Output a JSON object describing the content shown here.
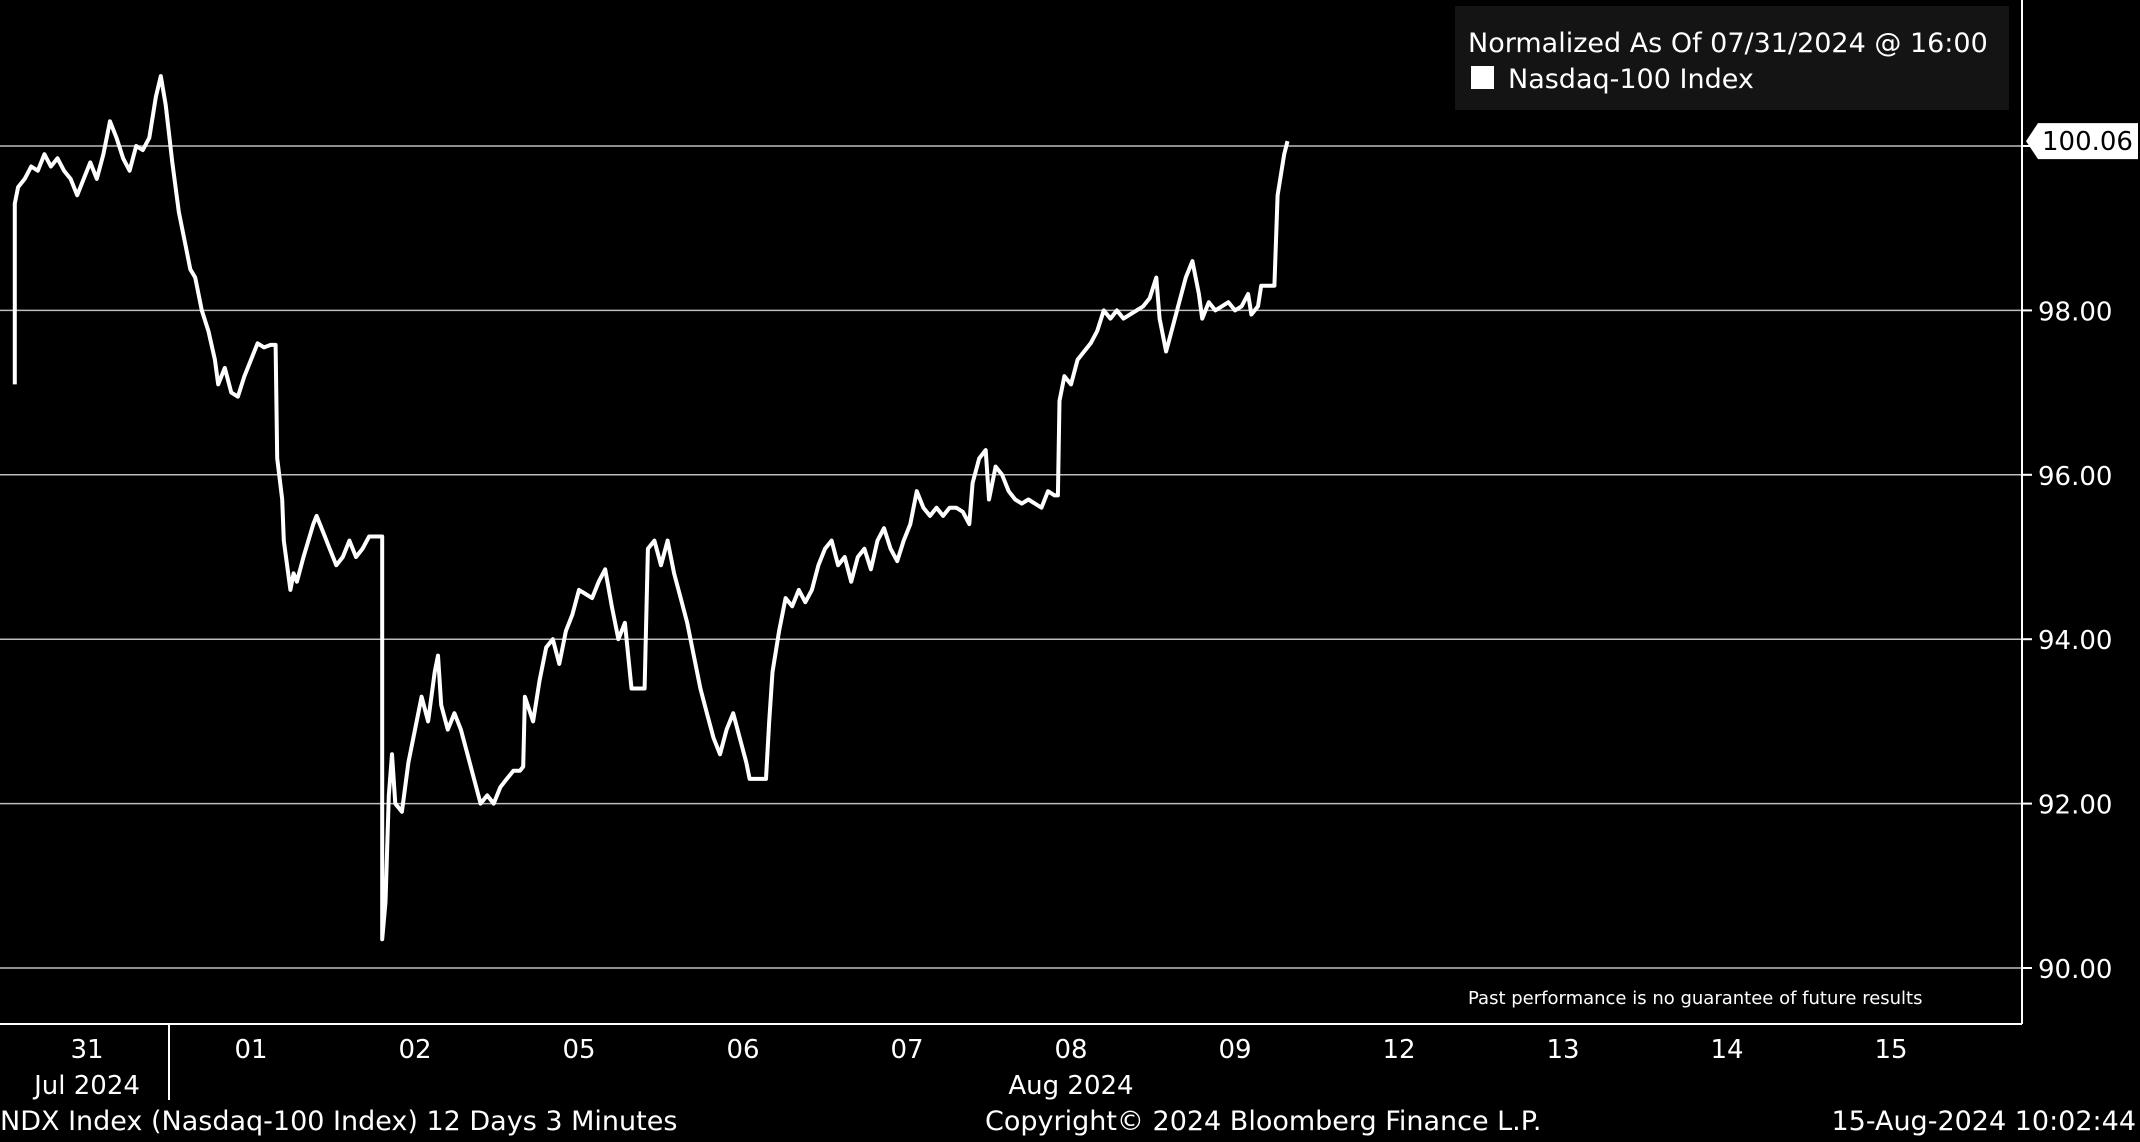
{
  "chart_data": {
    "type": "line",
    "legend": {
      "header": "Normalized As Of 07/31/2024 @ 16:00",
      "placement": "top-right",
      "items": [
        {
          "name": "Nasdaq-100 Index",
          "color": "#ffffff"
        }
      ]
    },
    "last_value_label": "100.06",
    "disclaimer": "Past performance is no guarantee of future results",
    "y_axis": {
      "side": "right",
      "range": [
        89.3,
        101.8
      ],
      "ticks": [
        90,
        92,
        94,
        96,
        98,
        100
      ],
      "tick_labels": [
        "90.00",
        "92.00",
        "94.00",
        "96.00",
        "98.00",
        "100.00"
      ],
      "grid": true
    },
    "x_axis": {
      "range": [
        0,
        11.8
      ],
      "ticks": [
        {
          "pos": 0,
          "label": "31"
        },
        {
          "pos": 1,
          "label": "01"
        },
        {
          "pos": 2,
          "label": "02"
        },
        {
          "pos": 3,
          "label": "05"
        },
        {
          "pos": 4,
          "label": "06"
        },
        {
          "pos": 5,
          "label": "07"
        },
        {
          "pos": 6,
          "label": "08"
        },
        {
          "pos": 7,
          "label": "09"
        },
        {
          "pos": 8,
          "label": "12"
        },
        {
          "pos": 9,
          "label": "13"
        },
        {
          "pos": 10,
          "label": "14"
        },
        {
          "pos": 11,
          "label": "15"
        }
      ],
      "month_labels": [
        {
          "pos": 0,
          "label": "Jul 2024"
        },
        {
          "pos": 6,
          "label": "Aug 2024"
        }
      ],
      "month_separator_pos": 0.5
    },
    "series": [
      {
        "name": "Nasdaq-100 Index",
        "color": "#ffffff",
        "points": [
          [
            -0.44,
            97.1
          ],
          [
            -0.44,
            99.3
          ],
          [
            -0.42,
            99.5
          ],
          [
            -0.38,
            99.6
          ],
          [
            -0.34,
            99.75
          ],
          [
            -0.3,
            99.7
          ],
          [
            -0.26,
            99.9
          ],
          [
            -0.22,
            99.75
          ],
          [
            -0.18,
            99.85
          ],
          [
            -0.14,
            99.7
          ],
          [
            -0.1,
            99.6
          ],
          [
            -0.06,
            99.4
          ],
          [
            -0.02,
            99.6
          ],
          [
            0.02,
            99.8
          ],
          [
            0.06,
            99.6
          ],
          [
            0.1,
            99.9
          ],
          [
            0.14,
            100.3
          ],
          [
            0.18,
            100.1
          ],
          [
            0.22,
            99.85
          ],
          [
            0.26,
            99.7
          ],
          [
            0.3,
            100.0
          ],
          [
            0.34,
            99.95
          ],
          [
            0.38,
            100.1
          ],
          [
            0.42,
            100.6
          ],
          [
            0.45,
            100.85
          ],
          [
            0.48,
            100.5
          ],
          [
            0.52,
            99.8
          ],
          [
            0.56,
            99.2
          ],
          [
            0.6,
            98.8
          ],
          [
            0.63,
            98.5
          ],
          [
            0.66,
            98.4
          ],
          [
            0.7,
            98.0
          ],
          [
            0.74,
            97.75
          ],
          [
            0.78,
            97.4
          ],
          [
            0.8,
            97.1
          ],
          [
            0.84,
            97.3
          ],
          [
            0.88,
            97.0
          ],
          [
            0.92,
            96.95
          ],
          [
            0.96,
            97.2
          ],
          [
            1.0,
            97.4
          ],
          [
            1.04,
            97.6
          ],
          [
            1.08,
            97.55
          ],
          [
            1.12,
            97.58
          ],
          [
            1.15,
            97.58
          ],
          [
            1.16,
            96.2
          ],
          [
            1.19,
            95.7
          ],
          [
            1.2,
            95.2
          ],
          [
            1.24,
            94.6
          ],
          [
            1.26,
            94.8
          ],
          [
            1.28,
            94.7
          ],
          [
            1.32,
            95.0
          ],
          [
            1.35,
            95.2
          ],
          [
            1.38,
            95.4
          ],
          [
            1.4,
            95.5
          ],
          [
            1.44,
            95.3
          ],
          [
            1.48,
            95.1
          ],
          [
            1.52,
            94.9
          ],
          [
            1.56,
            95.0
          ],
          [
            1.6,
            95.2
          ],
          [
            1.64,
            95.0
          ],
          [
            1.68,
            95.1
          ],
          [
            1.72,
            95.25
          ],
          [
            1.76,
            95.25
          ],
          [
            1.8,
            95.25
          ],
          [
            1.8,
            90.35
          ],
          [
            1.82,
            90.8
          ],
          [
            1.84,
            92.1
          ],
          [
            1.86,
            92.6
          ],
          [
            1.88,
            92.0
          ],
          [
            1.92,
            91.9
          ],
          [
            1.96,
            92.5
          ],
          [
            2.0,
            92.9
          ],
          [
            2.04,
            93.3
          ],
          [
            2.08,
            93.0
          ],
          [
            2.12,
            93.6
          ],
          [
            2.14,
            93.8
          ],
          [
            2.16,
            93.2
          ],
          [
            2.2,
            92.9
          ],
          [
            2.24,
            93.1
          ],
          [
            2.28,
            92.9
          ],
          [
            2.32,
            92.6
          ],
          [
            2.36,
            92.3
          ],
          [
            2.4,
            92.0
          ],
          [
            2.44,
            92.1
          ],
          [
            2.48,
            92.0
          ],
          [
            2.52,
            92.2
          ],
          [
            2.56,
            92.3
          ],
          [
            2.6,
            92.4
          ],
          [
            2.64,
            92.4
          ],
          [
            2.66,
            92.45
          ],
          [
            2.67,
            93.3
          ],
          [
            2.72,
            93.0
          ],
          [
            2.76,
            93.5
          ],
          [
            2.8,
            93.9
          ],
          [
            2.84,
            94.0
          ],
          [
            2.88,
            93.7
          ],
          [
            2.92,
            94.1
          ],
          [
            2.96,
            94.3
          ],
          [
            3.0,
            94.6
          ],
          [
            3.04,
            94.55
          ],
          [
            3.08,
            94.5
          ],
          [
            3.12,
            94.7
          ],
          [
            3.16,
            94.85
          ],
          [
            3.2,
            94.4
          ],
          [
            3.24,
            94.0
          ],
          [
            3.28,
            94.2
          ],
          [
            3.32,
            93.4
          ],
          [
            3.36,
            93.4
          ],
          [
            3.4,
            93.4
          ],
          [
            3.42,
            95.1
          ],
          [
            3.46,
            95.2
          ],
          [
            3.5,
            94.9
          ],
          [
            3.54,
            95.2
          ],
          [
            3.58,
            94.8
          ],
          [
            3.62,
            94.5
          ],
          [
            3.66,
            94.2
          ],
          [
            3.7,
            93.8
          ],
          [
            3.74,
            93.4
          ],
          [
            3.78,
            93.1
          ],
          [
            3.82,
            92.8
          ],
          [
            3.86,
            92.6
          ],
          [
            3.9,
            92.9
          ],
          [
            3.94,
            93.1
          ],
          [
            3.98,
            92.8
          ],
          [
            4.02,
            92.5
          ],
          [
            4.04,
            92.3
          ],
          [
            4.1,
            92.3
          ],
          [
            4.14,
            92.3
          ],
          [
            4.16,
            93.0
          ],
          [
            4.18,
            93.6
          ],
          [
            4.22,
            94.1
          ],
          [
            4.26,
            94.5
          ],
          [
            4.3,
            94.4
          ],
          [
            4.34,
            94.6
          ],
          [
            4.38,
            94.45
          ],
          [
            4.42,
            94.6
          ],
          [
            4.46,
            94.9
          ],
          [
            4.5,
            95.1
          ],
          [
            4.54,
            95.2
          ],
          [
            4.58,
            94.9
          ],
          [
            4.62,
            95.0
          ],
          [
            4.66,
            94.7
          ],
          [
            4.7,
            95.0
          ],
          [
            4.74,
            95.1
          ],
          [
            4.78,
            94.85
          ],
          [
            4.82,
            95.2
          ],
          [
            4.86,
            95.35
          ],
          [
            4.9,
            95.1
          ],
          [
            4.94,
            94.95
          ],
          [
            4.98,
            95.2
          ],
          [
            5.02,
            95.4
          ],
          [
            5.06,
            95.8
          ],
          [
            5.1,
            95.6
          ],
          [
            5.14,
            95.5
          ],
          [
            5.18,
            95.6
          ],
          [
            5.22,
            95.5
          ],
          [
            5.26,
            95.6
          ],
          [
            5.3,
            95.6
          ],
          [
            5.34,
            95.55
          ],
          [
            5.38,
            95.4
          ],
          [
            5.4,
            95.9
          ],
          [
            5.44,
            96.2
          ],
          [
            5.48,
            96.3
          ],
          [
            5.5,
            95.7
          ],
          [
            5.54,
            96.1
          ],
          [
            5.58,
            96.0
          ],
          [
            5.62,
            95.8
          ],
          [
            5.66,
            95.7
          ],
          [
            5.7,
            95.65
          ],
          [
            5.74,
            95.7
          ],
          [
            5.78,
            95.65
          ],
          [
            5.82,
            95.6
          ],
          [
            5.86,
            95.8
          ],
          [
            5.9,
            95.75
          ],
          [
            5.92,
            95.75
          ],
          [
            5.93,
            96.9
          ],
          [
            5.96,
            97.2
          ],
          [
            6.0,
            97.1
          ],
          [
            6.04,
            97.4
          ],
          [
            6.08,
            97.5
          ],
          [
            6.12,
            97.6
          ],
          [
            6.16,
            97.75
          ],
          [
            6.2,
            98.0
          ],
          [
            6.24,
            97.9
          ],
          [
            6.28,
            98.0
          ],
          [
            6.32,
            97.9
          ],
          [
            6.36,
            97.95
          ],
          [
            6.4,
            98.0
          ],
          [
            6.44,
            98.05
          ],
          [
            6.48,
            98.15
          ],
          [
            6.52,
            98.4
          ],
          [
            6.54,
            97.9
          ],
          [
            6.58,
            97.5
          ],
          [
            6.62,
            97.8
          ],
          [
            6.66,
            98.1
          ],
          [
            6.7,
            98.4
          ],
          [
            6.74,
            98.6
          ],
          [
            6.78,
            98.2
          ],
          [
            6.8,
            97.9
          ],
          [
            6.84,
            98.1
          ],
          [
            6.88,
            98.0
          ],
          [
            6.92,
            98.05
          ],
          [
            6.96,
            98.1
          ],
          [
            7.0,
            98.0
          ],
          [
            7.04,
            98.05
          ],
          [
            7.08,
            98.2
          ],
          [
            7.1,
            97.95
          ],
          [
            7.14,
            98.05
          ],
          [
            7.16,
            98.3
          ],
          [
            7.2,
            98.3
          ],
          [
            7.24,
            98.3
          ],
          [
            7.26,
            99.4
          ],
          [
            7.3,
            99.9
          ],
          [
            7.32,
            100.06
          ]
        ]
      }
    ]
  },
  "footer": {
    "left": "NDX Index (Nasdaq-100 Index) 12 Days 3 Minutes",
    "center": "Copyright© 2024 Bloomberg Finance L.P.",
    "right": "15-Aug-2024 10:02:44"
  }
}
